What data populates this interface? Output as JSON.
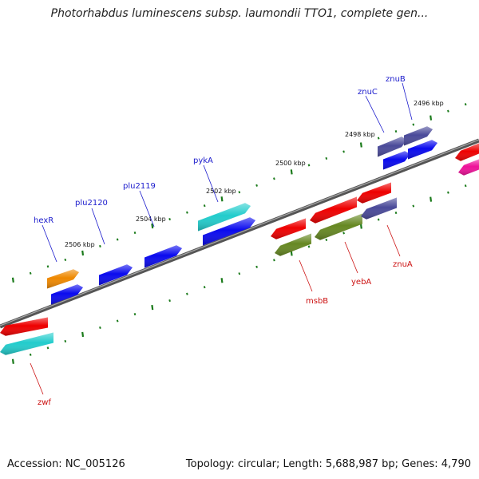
{
  "title": "Photorhabdus luminescens subsp. laumondii TTO1, complete gen...",
  "footer": {
    "accession": "Accession: NC_005126",
    "summary": "Topology: circular; Length: 5,688,987 bp; Genes: 4,790"
  },
  "colors": {
    "backbone": "#707070",
    "tick_dashes": "#1a7a1a",
    "forward_label": "#1a1acc",
    "reverse_label": "#cc1111",
    "red": "#ee0000",
    "blue": "#0a0aee",
    "cyan": "#22cccc",
    "orange": "#ee8800",
    "olive": "#668822",
    "purple": "#4a4a99",
    "magenta": "#ee1199"
  },
  "ticks": [
    {
      "label": "2496 kbp"
    },
    {
      "label": "2498 kbp"
    },
    {
      "label": "2500 kbp"
    },
    {
      "label": "2502 kbp"
    },
    {
      "label": "2504 kbp"
    },
    {
      "label": "2506 kbp"
    }
  ],
  "forward_genes": [
    {
      "name": "znuB"
    },
    {
      "name": "znuC"
    },
    {
      "name": "pykA"
    },
    {
      "name": "plu2119"
    },
    {
      "name": "plu2120"
    },
    {
      "name": "hexR"
    }
  ],
  "reverse_genes": [
    {
      "name": "znuA"
    },
    {
      "name": "yebA"
    },
    {
      "name": "msbB"
    },
    {
      "name": "zwf"
    }
  ]
}
